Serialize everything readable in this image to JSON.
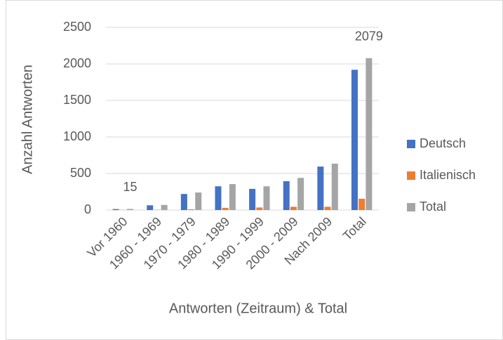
{
  "chart_data": {
    "type": "bar",
    "x_label": "Antworten (Zeitraum) & Total",
    "y_label": "Anzahl Antworten",
    "categories": [
      "Vor 1960",
      "1960 - 1969",
      "1970 - 1979",
      "1980 - 1989",
      "1990 - 1999",
      "2000 - 2009",
      "Nach 2009",
      "Total"
    ],
    "series": [
      {
        "name": "Deutsch",
        "color": "#4472c4",
        "values": [
          13,
          65,
          220,
          325,
          290,
          395,
          595,
          1920
        ]
      },
      {
        "name": "Italienisch",
        "color": "#ed7d31",
        "values": [
          2,
          3,
          10,
          30,
          35,
          45,
          45,
          155
        ]
      },
      {
        "name": "Total",
        "color": "#a5a5a5",
        "values": [
          15,
          70,
          240,
          355,
          325,
          440,
          635,
          2079
        ],
        "value_labels": [
          "15",
          null,
          null,
          null,
          null,
          null,
          null,
          "2079"
        ]
      }
    ],
    "ylim": [
      0,
      2500
    ],
    "yticks": [
      0,
      500,
      1000,
      1500,
      2000,
      2500
    ],
    "grid": true,
    "legend": "right"
  }
}
